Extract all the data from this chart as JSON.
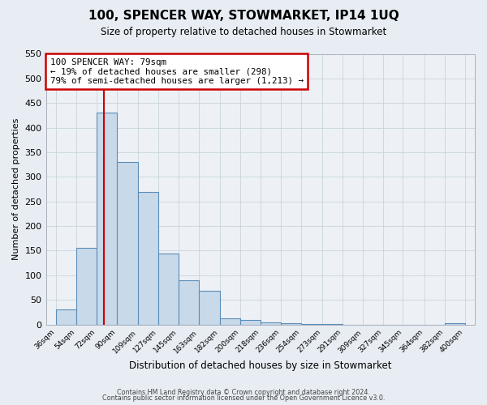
{
  "title": "100, SPENCER WAY, STOWMARKET, IP14 1UQ",
  "subtitle": "Size of property relative to detached houses in Stowmarket",
  "xlabel": "Distribution of detached houses by size in Stowmarket",
  "ylabel": "Number of detached properties",
  "bar_left_edges": [
    36,
    54,
    72,
    90,
    109,
    127,
    145,
    163,
    182,
    200,
    218,
    236,
    254,
    273,
    291,
    309,
    327,
    345,
    364,
    382
  ],
  "bar_widths": [
    18,
    18,
    18,
    19,
    18,
    18,
    18,
    19,
    18,
    18,
    18,
    18,
    19,
    18,
    18,
    18,
    18,
    19,
    18,
    18
  ],
  "bar_heights": [
    30,
    155,
    430,
    330,
    270,
    145,
    90,
    68,
    13,
    9,
    5,
    2,
    1,
    1,
    0,
    0,
    0,
    0,
    0,
    2
  ],
  "bar_color": "#c8d9ea",
  "bar_edge_color": "#5b8db8",
  "bar_edge_width": 0.8,
  "property_line_x": 79,
  "property_line_color": "#cc0000",
  "ylim_max": 550,
  "yticks": [
    0,
    50,
    100,
    150,
    200,
    250,
    300,
    350,
    400,
    450,
    500,
    550
  ],
  "xtick_labels": [
    "36sqm",
    "54sqm",
    "72sqm",
    "90sqm",
    "109sqm",
    "127sqm",
    "145sqm",
    "163sqm",
    "182sqm",
    "200sqm",
    "218sqm",
    "236sqm",
    "254sqm",
    "273sqm",
    "291sqm",
    "309sqm",
    "327sqm",
    "345sqm",
    "364sqm",
    "382sqm",
    "400sqm"
  ],
  "xtick_positions": [
    36,
    54,
    72,
    90,
    109,
    127,
    145,
    163,
    182,
    200,
    218,
    236,
    254,
    273,
    291,
    309,
    327,
    345,
    364,
    382,
    400
  ],
  "annotation_line1": "100 SPENCER WAY: 79sqm",
  "annotation_line2": "← 19% of detached houses are smaller (298)",
  "annotation_line3": "79% of semi-detached houses are larger (1,213) →",
  "annotation_box_color": "#ffffff",
  "annotation_box_edge_color": "#cc0000",
  "grid_color": "#c8d4de",
  "fig_background_color": "#e8edf3",
  "plot_background_color": "#edf1f6",
  "footer_line1": "Contains HM Land Registry data © Crown copyright and database right 2024.",
  "footer_line2": "Contains public sector information licensed under the Open Government Licence v3.0.",
  "xlim_left": 27,
  "xlim_right": 409
}
